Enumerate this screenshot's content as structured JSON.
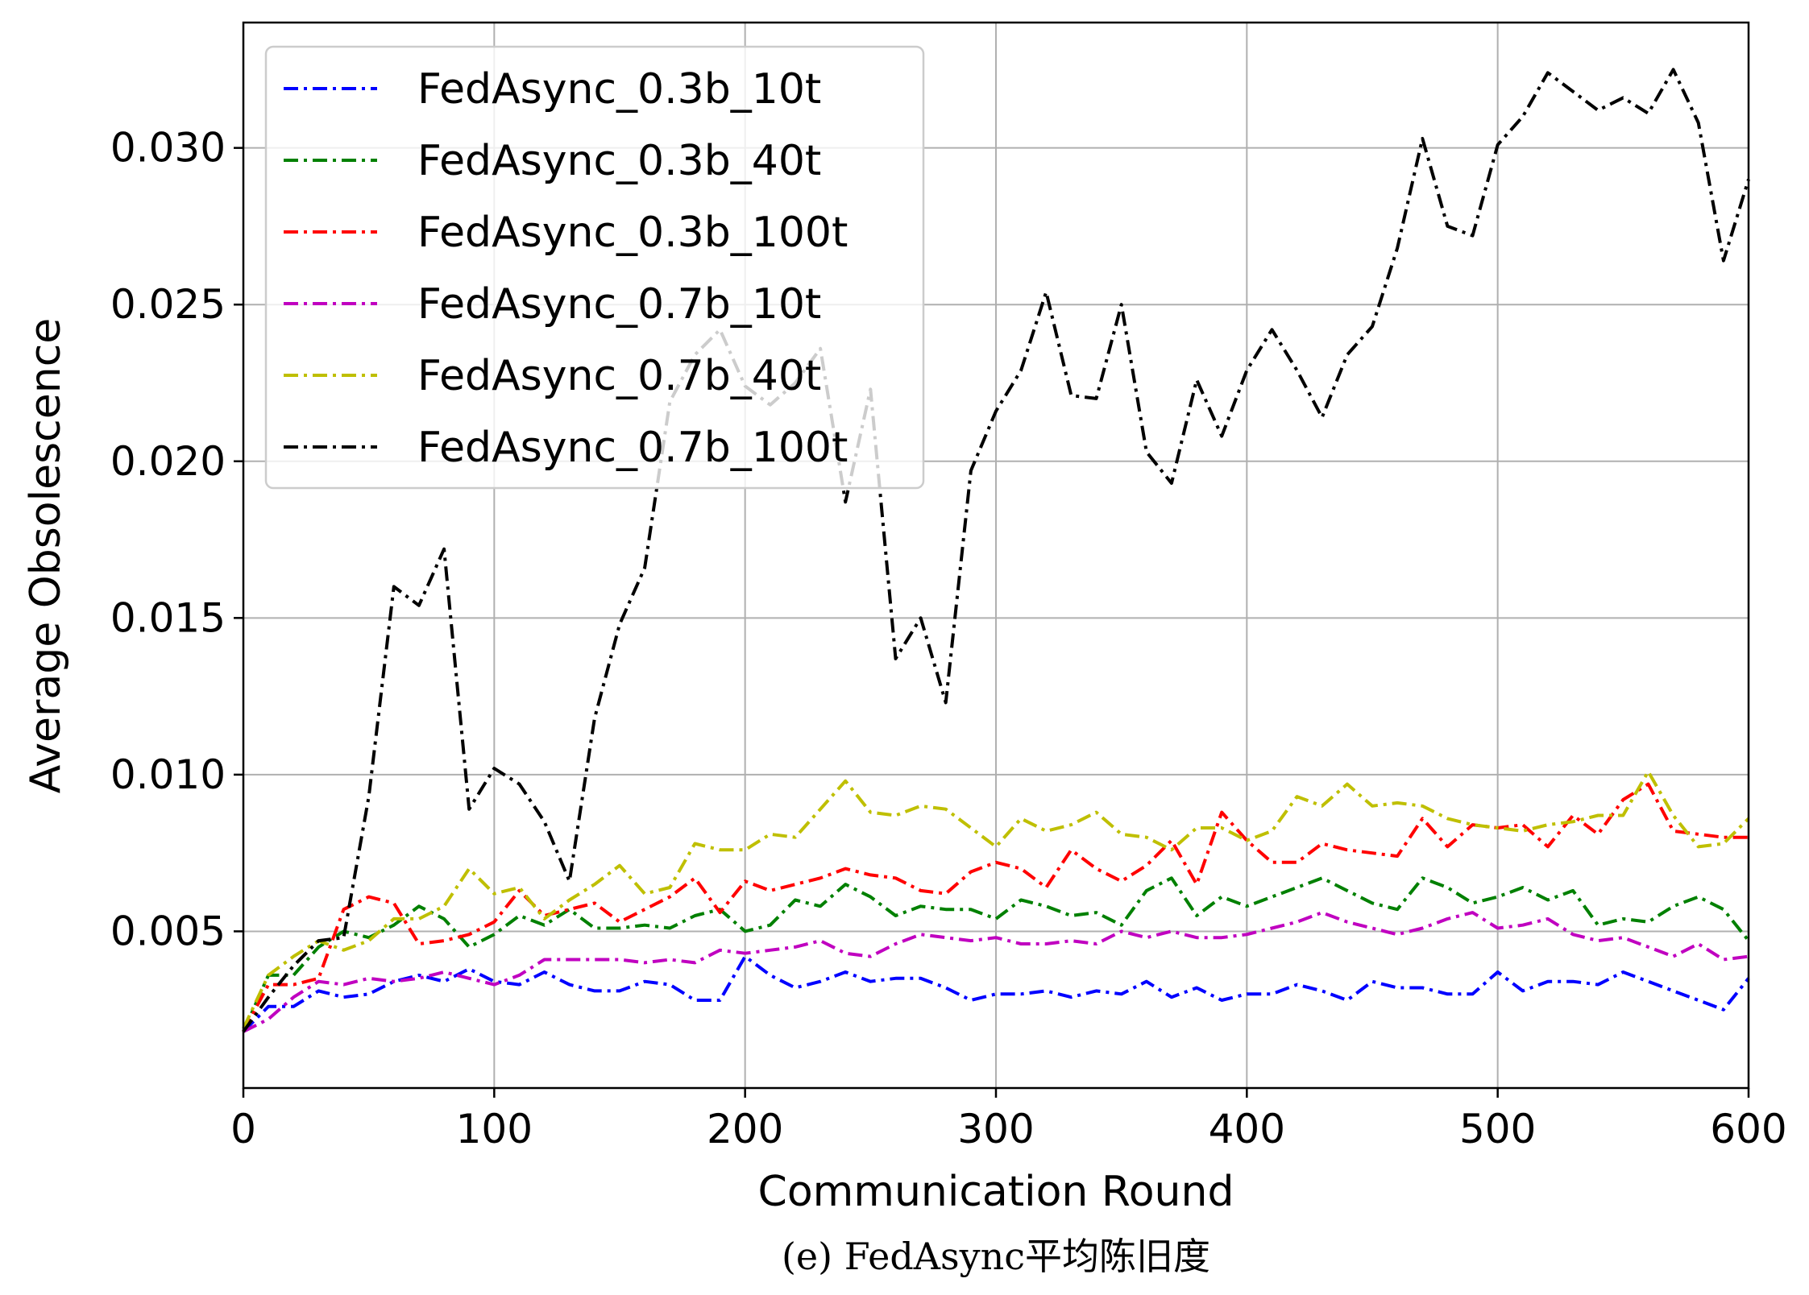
{
  "chart_data": {
    "type": "line",
    "title": "",
    "xlabel": "Communication Round",
    "ylabel": "Average Obsolescence",
    "caption": "(e) FedAsync平均陈旧度",
    "xlim": [
      0,
      600
    ],
    "ylim": [
      0,
      0.034
    ],
    "xticks": [
      0,
      100,
      200,
      300,
      400,
      500,
      600
    ],
    "xtick_labels": [
      "0",
      "100",
      "200",
      "300",
      "400",
      "500",
      "600"
    ],
    "yticks": [
      0.005,
      0.01,
      0.015,
      0.02,
      0.025,
      0.03
    ],
    "ytick_labels": [
      "0.005",
      "0.010",
      "0.015",
      "0.020",
      "0.025",
      "0.030"
    ],
    "grid": true,
    "legend_position": "upper-left",
    "line_style": "dash-dot",
    "x": [
      0,
      10,
      20,
      30,
      40,
      50,
      60,
      70,
      80,
      90,
      100,
      110,
      120,
      130,
      140,
      150,
      160,
      170,
      180,
      190,
      200,
      210,
      220,
      230,
      240,
      250,
      260,
      270,
      280,
      290,
      300,
      310,
      320,
      330,
      340,
      350,
      360,
      370,
      380,
      390,
      400,
      410,
      420,
      430,
      440,
      450,
      460,
      470,
      480,
      490,
      500,
      510,
      520,
      530,
      540,
      550,
      560,
      570,
      580,
      590,
      600
    ],
    "series": [
      {
        "name": "FedAsync_0.3b_10t",
        "color": "#0000ff",
        "values": [
          0.0018,
          0.0026,
          0.0026,
          0.0031,
          0.0029,
          0.003,
          0.0034,
          0.0036,
          0.0034,
          0.0038,
          0.0034,
          0.0033,
          0.0037,
          0.0033,
          0.0031,
          0.0031,
          0.0034,
          0.0033,
          0.0028,
          0.0028,
          0.0042,
          0.0036,
          0.0032,
          0.0034,
          0.0037,
          0.0034,
          0.0035,
          0.0035,
          0.0032,
          0.0028,
          0.003,
          0.003,
          0.0031,
          0.0029,
          0.0031,
          0.003,
          0.0034,
          0.0029,
          0.0032,
          0.0028,
          0.003,
          0.003,
          0.0033,
          0.0031,
          0.0028,
          0.0034,
          0.0032,
          0.0032,
          0.003,
          0.003,
          0.0037,
          0.0031,
          0.0034,
          0.0034,
          0.0033,
          0.0037,
          0.0034,
          0.0031,
          0.0028,
          0.0025,
          0.0035
        ]
      },
      {
        "name": "FedAsync_0.3b_40t",
        "color": "#008000",
        "values": [
          0.0018,
          0.0036,
          0.0036,
          0.0045,
          0.005,
          0.0048,
          0.0052,
          0.0058,
          0.0054,
          0.0045,
          0.0049,
          0.0055,
          0.0052,
          0.0057,
          0.0051,
          0.0051,
          0.0052,
          0.0051,
          0.0055,
          0.0057,
          0.005,
          0.0052,
          0.006,
          0.0058,
          0.0065,
          0.0061,
          0.0055,
          0.0058,
          0.0057,
          0.0057,
          0.0054,
          0.006,
          0.0058,
          0.0055,
          0.0056,
          0.0052,
          0.0063,
          0.0067,
          0.0055,
          0.0061,
          0.0058,
          0.0061,
          0.0064,
          0.0067,
          0.0063,
          0.0059,
          0.0057,
          0.0067,
          0.0064,
          0.0059,
          0.0061,
          0.0064,
          0.006,
          0.0063,
          0.0052,
          0.0054,
          0.0053,
          0.0058,
          0.0061,
          0.0057,
          0.0047
        ]
      },
      {
        "name": "FedAsync_0.3b_100t",
        "color": "#ff0000",
        "values": [
          0.0018,
          0.0033,
          0.0033,
          0.0035,
          0.0057,
          0.0061,
          0.0059,
          0.0046,
          0.0047,
          0.0049,
          0.0053,
          0.0063,
          0.0055,
          0.0057,
          0.0059,
          0.0053,
          0.0057,
          0.0061,
          0.0067,
          0.0056,
          0.0066,
          0.0063,
          0.0065,
          0.0067,
          0.007,
          0.0068,
          0.0067,
          0.0063,
          0.0062,
          0.0069,
          0.0072,
          0.007,
          0.0064,
          0.0076,
          0.007,
          0.0066,
          0.0071,
          0.0079,
          0.0065,
          0.0088,
          0.0079,
          0.0072,
          0.0072,
          0.0078,
          0.0076,
          0.0075,
          0.0074,
          0.0086,
          0.0077,
          0.0084,
          0.0083,
          0.0084,
          0.0077,
          0.0087,
          0.0081,
          0.0092,
          0.0097,
          0.0082,
          0.0081,
          0.008,
          0.008
        ]
      },
      {
        "name": "FedAsync_0.7b_10t",
        "color": "#c000c0",
        "values": [
          0.0018,
          0.0022,
          0.0029,
          0.0034,
          0.0033,
          0.0035,
          0.0034,
          0.0035,
          0.0037,
          0.0035,
          0.0033,
          0.0036,
          0.0041,
          0.0041,
          0.0041,
          0.0041,
          0.004,
          0.0041,
          0.004,
          0.0044,
          0.0043,
          0.0044,
          0.0045,
          0.0047,
          0.0043,
          0.0042,
          0.0046,
          0.0049,
          0.0048,
          0.0047,
          0.0048,
          0.0046,
          0.0046,
          0.0047,
          0.0046,
          0.005,
          0.0048,
          0.005,
          0.0048,
          0.0048,
          0.0049,
          0.0051,
          0.0053,
          0.0056,
          0.0053,
          0.0051,
          0.0049,
          0.0051,
          0.0054,
          0.0056,
          0.0051,
          0.0052,
          0.0054,
          0.0049,
          0.0047,
          0.0048,
          0.0045,
          0.0042,
          0.0046,
          0.0041,
          0.0042
        ]
      },
      {
        "name": "FedAsync_0.7b_40t",
        "color": "#bfbf00",
        "values": [
          0.0019,
          0.0036,
          0.0042,
          0.0047,
          0.0044,
          0.0047,
          0.0054,
          0.0054,
          0.0058,
          0.007,
          0.0062,
          0.0064,
          0.0054,
          0.006,
          0.0065,
          0.0071,
          0.0062,
          0.0064,
          0.0078,
          0.0076,
          0.0076,
          0.0081,
          0.008,
          0.0089,
          0.0098,
          0.0088,
          0.0087,
          0.009,
          0.0089,
          0.0083,
          0.0077,
          0.0086,
          0.0082,
          0.0084,
          0.0088,
          0.0081,
          0.008,
          0.0076,
          0.0083,
          0.0083,
          0.0079,
          0.0082,
          0.0093,
          0.009,
          0.0097,
          0.009,
          0.0091,
          0.009,
          0.0086,
          0.0084,
          0.0083,
          0.0082,
          0.0084,
          0.0085,
          0.0087,
          0.0087,
          0.0101,
          0.0087,
          0.0077,
          0.0078,
          0.0086
        ]
      },
      {
        "name": "FedAsync_0.7b_100t",
        "color": "#000000",
        "values": [
          0.0018,
          0.0029,
          0.0039,
          0.0047,
          0.0048,
          0.0093,
          0.016,
          0.0154,
          0.0172,
          0.0089,
          0.0102,
          0.0097,
          0.0085,
          0.0066,
          0.0118,
          0.0148,
          0.0166,
          0.0219,
          0.0234,
          0.0242,
          0.0224,
          0.0218,
          0.0225,
          0.0236,
          0.0187,
          0.0223,
          0.0137,
          0.015,
          0.0123,
          0.0197,
          0.0216,
          0.0229,
          0.0254,
          0.0221,
          0.022,
          0.025,
          0.0203,
          0.0193,
          0.0226,
          0.0208,
          0.0229,
          0.0242,
          0.0229,
          0.0214,
          0.0234,
          0.0243,
          0.0268,
          0.0303,
          0.0275,
          0.0272,
          0.0301,
          0.031,
          0.0324,
          0.0318,
          0.0312,
          0.0316,
          0.0311,
          0.0325,
          0.0308,
          0.0264,
          0.029
        ]
      }
    ]
  }
}
